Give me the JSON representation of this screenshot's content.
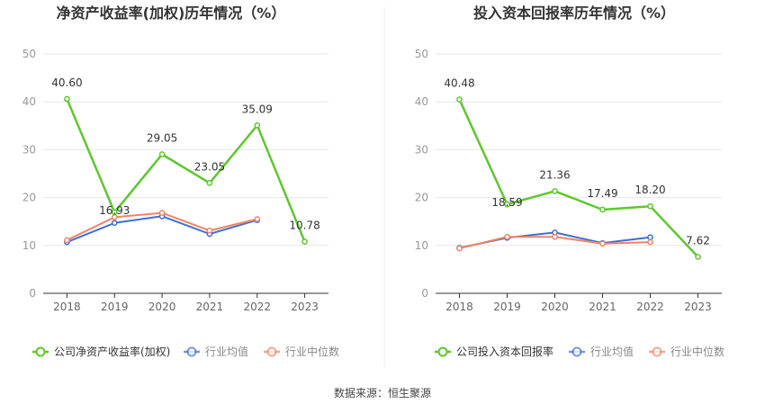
{
  "source_label": "数据来源：恒生聚源",
  "chart_data": [
    {
      "type": "line",
      "title": "净资产收益率(加权)历年情况（%）",
      "xlabel": "",
      "ylabel": "",
      "categories": [
        "2018",
        "2019",
        "2020",
        "2021",
        "2022",
        "2023"
      ],
      "ylim": [
        0,
        50
      ],
      "yticks": [
        0,
        10,
        20,
        30,
        40,
        50
      ],
      "grid": true,
      "legend_position": "bottom",
      "series": [
        {
          "name": "公司净资产收益率(加权)",
          "color": "#5ec72d",
          "values": [
            40.6,
            16.93,
            29.05,
            23.05,
            35.09,
            10.78
          ],
          "labels": [
            "40.60",
            "16.93",
            "29.05",
            "23.05",
            "35.09",
            "10.78"
          ]
        },
        {
          "name": "行业均值",
          "color": "#3f6fd6",
          "values": [
            10.7,
            14.7,
            16.1,
            12.4,
            15.3,
            null
          ]
        },
        {
          "name": "行业中位数",
          "color": "#f08466",
          "values": [
            11.1,
            15.9,
            16.8,
            13.1,
            15.5,
            null
          ]
        }
      ]
    },
    {
      "type": "line",
      "title": "投入资本回报率历年情况（%）",
      "xlabel": "",
      "ylabel": "",
      "categories": [
        "2018",
        "2019",
        "2020",
        "2021",
        "2022",
        "2023"
      ],
      "ylim": [
        0,
        50
      ],
      "yticks": [
        0,
        10,
        20,
        30,
        40,
        50
      ],
      "grid": true,
      "legend_position": "bottom",
      "series": [
        {
          "name": "公司投入资本回报率",
          "color": "#5ec72d",
          "values": [
            40.48,
            18.59,
            21.36,
            17.49,
            18.2,
            7.62
          ],
          "labels": [
            "40.48",
            "18.59",
            "21.36",
            "17.49",
            "18.20",
            "7.62"
          ]
        },
        {
          "name": "行业均值",
          "color": "#3f6fd6",
          "values": [
            9.5,
            11.6,
            12.7,
            10.5,
            11.7,
            null
          ]
        },
        {
          "name": "行业中位数",
          "color": "#f08466",
          "values": [
            9.4,
            11.8,
            11.8,
            10.4,
            10.7,
            null
          ]
        }
      ]
    }
  ]
}
